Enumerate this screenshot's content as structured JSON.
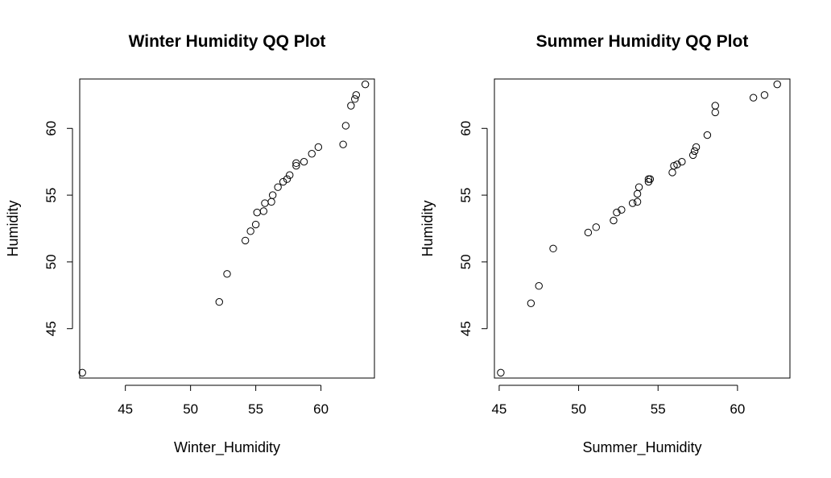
{
  "chart_data": [
    {
      "type": "scatter",
      "title": "Winter Humidity QQ Plot",
      "xlabel": "Winter_Humidity",
      "ylabel": "Humidity",
      "xlim": [
        41.5,
        64.1
      ],
      "ylim": [
        41.3,
        63.7
      ],
      "xticks": [
        45,
        50,
        55,
        60
      ],
      "yticks": [
        45,
        50,
        55,
        60
      ],
      "grid": false,
      "series": [
        {
          "x": [
            41.7,
            52.2,
            52.8,
            54.2,
            54.6,
            55.0,
            55.1,
            55.6,
            55.7,
            56.2,
            56.3,
            56.7,
            57.1,
            57.4,
            57.6,
            58.1,
            58.1,
            58.7,
            59.3,
            59.8,
            61.7,
            61.9,
            62.3,
            62.6,
            62.7,
            63.4
          ],
          "y": [
            41.7,
            47.0,
            49.1,
            51.6,
            52.3,
            52.8,
            53.7,
            53.8,
            54.4,
            54.5,
            55.0,
            55.6,
            56.0,
            56.2,
            56.5,
            57.2,
            57.4,
            57.5,
            58.1,
            58.6,
            58.8,
            60.2,
            61.7,
            62.2,
            62.5,
            63.3
          ]
        }
      ]
    },
    {
      "type": "scatter",
      "title": "Summer Humidity QQ Plot",
      "xlabel": "Summer_Humidity",
      "ylabel": "Humidity",
      "xlim": [
        44.7,
        63.3
      ],
      "ylim": [
        41.3,
        63.7
      ],
      "xticks": [
        45,
        50,
        55,
        60
      ],
      "yticks": [
        45,
        50,
        55,
        60
      ],
      "grid": false,
      "series": [
        {
          "x": [
            45.1,
            47.0,
            47.5,
            48.4,
            50.6,
            51.1,
            52.2,
            52.4,
            52.7,
            53.4,
            53.7,
            53.7,
            53.8,
            54.4,
            54.4,
            54.5,
            55.9,
            56.0,
            56.2,
            56.5,
            57.2,
            57.3,
            57.4,
            58.1,
            58.6,
            58.6,
            61.0,
            61.7,
            62.5
          ],
          "y": [
            41.7,
            46.9,
            48.2,
            51.0,
            52.2,
            52.6,
            53.1,
            53.7,
            53.9,
            54.4,
            54.5,
            55.1,
            55.6,
            56.0,
            56.2,
            56.2,
            56.7,
            57.2,
            57.3,
            57.5,
            58.0,
            58.3,
            58.6,
            59.5,
            61.2,
            61.7,
            62.3,
            62.5,
            63.3
          ]
        }
      ]
    }
  ]
}
